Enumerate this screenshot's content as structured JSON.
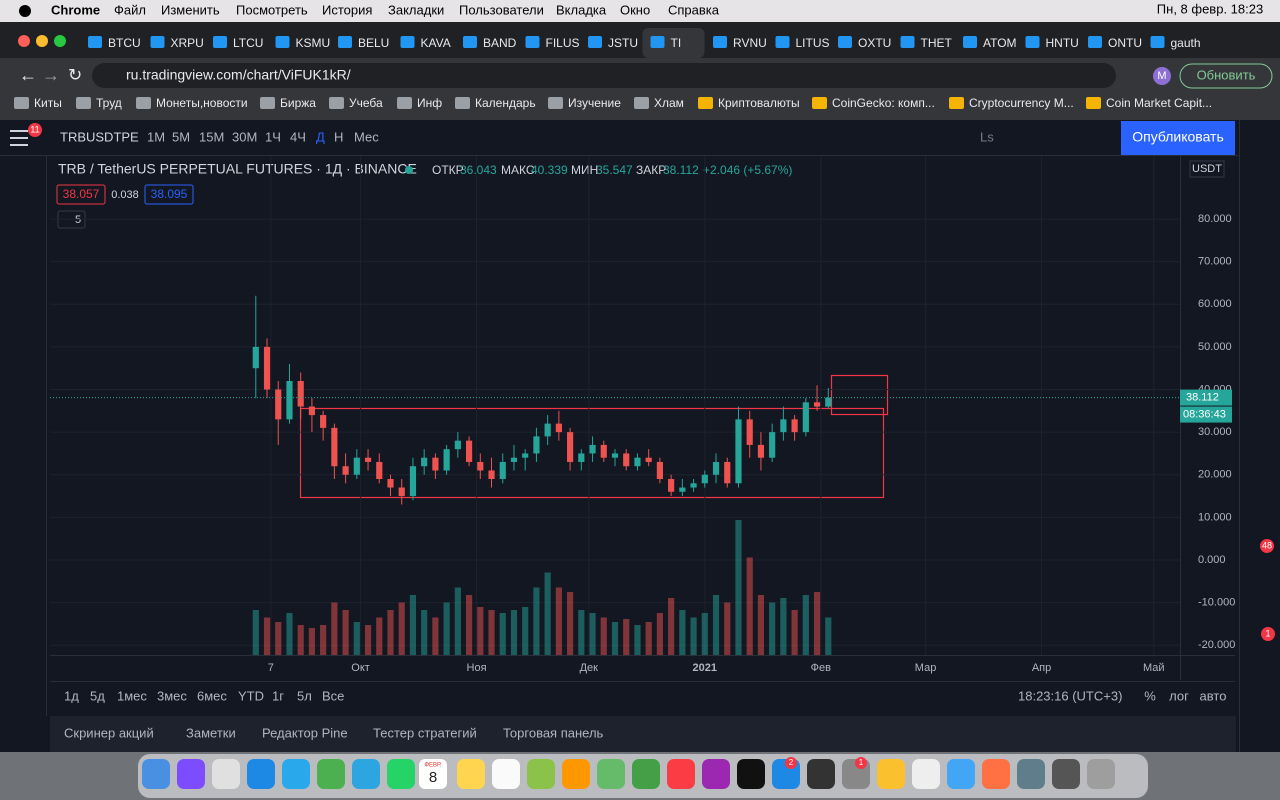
{
  "menubar": {
    "apple": "",
    "items": [
      "Chrome",
      "Файл",
      "Изменить",
      "Посмотреть",
      "История",
      "Закладки",
      "Пользователи",
      "Вкладка",
      "Окно",
      "Справка"
    ],
    "clock": "Пн, 8 февр. 18:23"
  },
  "tabs": [
    "BTCU",
    "XRPU",
    "LTCU",
    "KSMU",
    "BELU",
    "KAVA",
    "BAND",
    "FILUS",
    "JSTU",
    "TI",
    "RVNU",
    "LITUS",
    "OXTU",
    "THET",
    "ATOM",
    "HNTU",
    "ONTU",
    "gauth"
  ],
  "address": {
    "url": "ru.tradingview.com/chart/ViFUK1kR/",
    "profile": "M",
    "update": "Обновить"
  },
  "bookmarks": [
    "Киты",
    "Труд",
    "Монеты,новости",
    "Биржа",
    "Учеба",
    "Инф",
    "Календарь",
    "Изучение",
    "Хлам",
    "Криптовалюты",
    "CoinGecko: комп...",
    "Cryptocurrency M...",
    "Coin Market Capit..."
  ],
  "toolbar": {
    "badge": "11",
    "symbol": "TRBUSDTPE",
    "intervals": [
      "1М",
      "5М",
      "15М",
      "30М",
      "1Ч",
      "4Ч",
      "Д",
      "Н",
      "Мес"
    ],
    "layout": "Ls",
    "publish": "Опубликовать"
  },
  "legend": {
    "title": "TRB / TetherUS PERPETUAL FUTURES · 1Д · BINANCE",
    "open_label": "ОТКР",
    "open": "36.043",
    "high_label": "МАКС",
    "high": "40.339",
    "low_label": "МИН",
    "low": "35.547",
    "close_label": "ЗАКР",
    "close": "38.112",
    "change": "+2.046 (+5.67%)",
    "bid": "38.057",
    "spread": "0.038",
    "ask": "38.095",
    "indicators": "5"
  },
  "chart_data": {
    "type": "candlestick",
    "currency": "USDT",
    "xlim": [
      -53,
      249
    ],
    "xticks": [
      {
        "value": 6,
        "label": "7"
      },
      {
        "value": 30,
        "label": "Окт"
      },
      {
        "value": 61,
        "label": "Ноя"
      },
      {
        "value": 91,
        "label": "Дек"
      },
      {
        "value": 122,
        "label": "2021"
      },
      {
        "value": 153,
        "label": "Фев"
      },
      {
        "value": 181,
        "label": "Мар"
      },
      {
        "value": 212,
        "label": "Апр"
      },
      {
        "value": 242,
        "label": "Май"
      }
    ],
    "ylim": [
      -22.3,
      94.8
    ],
    "yticks": [
      {
        "value": 80,
        "label": "80.000"
      },
      {
        "value": 70,
        "label": "70.000"
      },
      {
        "value": 60,
        "label": "60.000"
      },
      {
        "value": 50,
        "label": "50.000"
      },
      {
        "value": 40,
        "label": "40.000"
      },
      {
        "value": 30,
        "label": "30.000"
      },
      {
        "value": 20,
        "label": "20.000"
      },
      {
        "value": 10,
        "label": "10.000"
      },
      {
        "value": 0,
        "label": "0.000"
      },
      {
        "value": -10,
        "label": "-10.000"
      },
      {
        "value": -20,
        "label": "-20.000"
      }
    ],
    "up_color": "#26a69a",
    "down_color": "#ef5350",
    "x": [
      2,
      5,
      8,
      11,
      14,
      17,
      20,
      23,
      26,
      29,
      32,
      35,
      38,
      41,
      44,
      47,
      50,
      53,
      56,
      59,
      62,
      65,
      68,
      71,
      74,
      77,
      80,
      83,
      86,
      89,
      92,
      95,
      98,
      101,
      104,
      107,
      110,
      113,
      116,
      119,
      122,
      125,
      128,
      131,
      134,
      137,
      140,
      143,
      146,
      149,
      152,
      155
    ],
    "open": [
      45,
      50,
      40,
      33,
      42,
      36,
      34,
      31,
      22,
      20,
      24,
      23,
      19,
      17,
      15,
      22,
      24,
      21,
      26,
      28,
      23,
      21,
      19,
      23,
      24,
      25,
      29,
      32,
      30,
      23,
      25,
      27,
      24,
      25,
      22,
      24,
      23,
      19,
      16,
      17,
      18,
      20,
      23,
      18,
      33,
      27,
      24,
      30,
      33,
      30,
      37,
      36
    ],
    "high": [
      62,
      52,
      42,
      46,
      44,
      38,
      35,
      32,
      25,
      26,
      26,
      25,
      20,
      19,
      24,
      26,
      25,
      27,
      30,
      29,
      25,
      24,
      25,
      27,
      26,
      31,
      34,
      35,
      31,
      26,
      29,
      28,
      26,
      26,
      25,
      26,
      24,
      20,
      19,
      19,
      21,
      25,
      24,
      36,
      35,
      30,
      32,
      36,
      34,
      38,
      41,
      40.339
    ],
    "low": [
      38,
      38,
      27,
      32,
      33,
      30,
      28,
      19,
      18,
      19,
      21,
      18,
      15,
      13,
      14,
      20,
      19,
      20,
      24,
      22,
      19,
      17,
      18,
      21,
      21,
      23,
      27,
      28,
      21,
      21,
      23,
      23,
      22,
      21,
      21,
      22,
      18,
      15,
      15,
      16,
      17,
      18,
      17,
      17,
      24,
      21,
      23,
      28,
      28,
      29,
      35,
      35.547
    ],
    "close": [
      50,
      40,
      33,
      42,
      36,
      34,
      31,
      22,
      20,
      24,
      23,
      19,
      17,
      15,
      22,
      24,
      21,
      26,
      28,
      23,
      21,
      19,
      23,
      24,
      25,
      29,
      32,
      30,
      23,
      25,
      27,
      24,
      25,
      22,
      24,
      23,
      19,
      16,
      17,
      18,
      20,
      23,
      18,
      33,
      27,
      24,
      30,
      33,
      30,
      37,
      36,
      38.112
    ],
    "vlim": [
      0,
      100
    ],
    "volume": [
      30,
      25,
      22,
      28,
      20,
      18,
      20,
      35,
      30,
      22,
      20,
      25,
      30,
      35,
      40,
      30,
      25,
      35,
      45,
      40,
      32,
      30,
      28,
      30,
      32,
      45,
      55,
      45,
      42,
      30,
      28,
      25,
      22,
      24,
      20,
      22,
      28,
      38,
      30,
      25,
      28,
      40,
      35,
      90,
      65,
      40,
      35,
      38,
      30,
      40,
      42,
      25
    ],
    "last_price": "38.112",
    "countdown": "08:36:43"
  },
  "time_bar": {
    "ranges": [
      "1д",
      "5д",
      "1мес",
      "3мес",
      "6мес",
      "YTD",
      "1г",
      "5л",
      "Все"
    ],
    "clock": "18:23:16 (UTC+3)",
    "percent": "%",
    "log": "лог",
    "auto": "авто"
  },
  "panel": [
    "Скринер акций",
    "Заметки",
    "Редактор Pine",
    "Тестер стратегий",
    "Торговая панель"
  ],
  "sidebar_badges": [
    "48",
    "1"
  ],
  "dock": {
    "calendar_month": "ФЕВР.",
    "calendar_day": "8",
    "badges": [
      "2",
      "1"
    ]
  }
}
